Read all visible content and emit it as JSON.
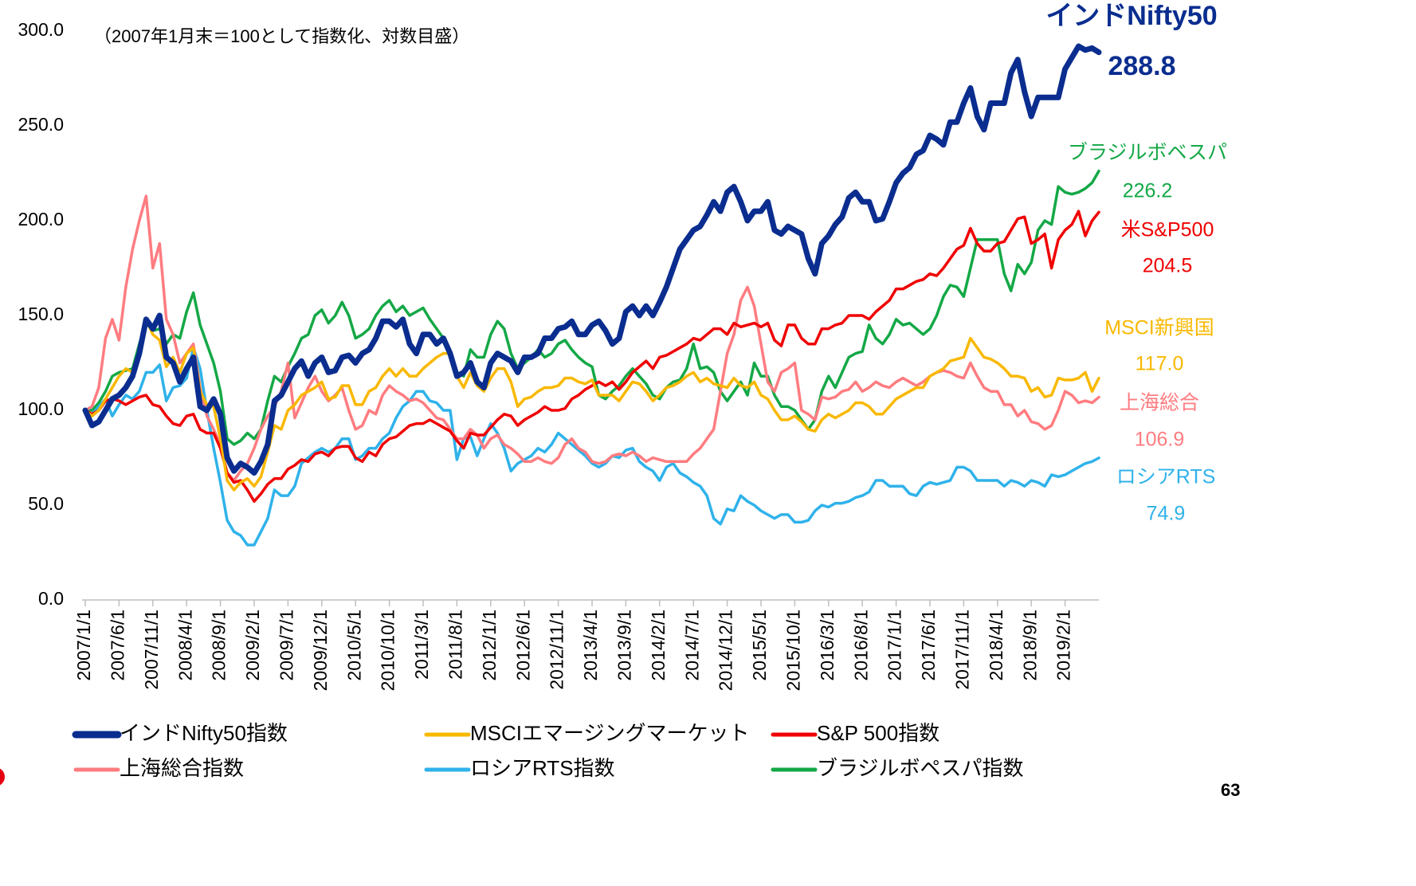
{
  "chart_data": {
    "type": "line",
    "subtitle": "（2007年1月末＝100として指数化、対数目盛）",
    "page_number": "63",
    "ylim": [
      0,
      300
    ],
    "yticks": [
      {
        "value": 0,
        "label": "0.0"
      },
      {
        "value": 50,
        "label": "50.0"
      },
      {
        "value": 100,
        "label": "100.0"
      },
      {
        "value": 150,
        "label": "150.0"
      },
      {
        "value": 200,
        "label": "200.0"
      },
      {
        "value": 250,
        "label": "250.0"
      },
      {
        "value": 300,
        "label": "300.0"
      }
    ],
    "categories": [
      "2007/1/1",
      null,
      null,
      null,
      null,
      "2007/6/1",
      null,
      null,
      null,
      null,
      "2007/11/1",
      null,
      null,
      null,
      null,
      "2008/4/1",
      null,
      null,
      null,
      null,
      "2008/9/1",
      null,
      null,
      null,
      null,
      "2009/2/1",
      null,
      null,
      null,
      null,
      "2009/7/1",
      null,
      null,
      null,
      null,
      "2009/12/1",
      null,
      null,
      null,
      null,
      "2010/5/1",
      null,
      null,
      null,
      null,
      "2010/10/1",
      null,
      null,
      null,
      null,
      "2011/3/1",
      null,
      null,
      null,
      null,
      "2011/8/1",
      null,
      null,
      null,
      null,
      "2012/1/1",
      null,
      null,
      null,
      null,
      "2012/6/1",
      null,
      null,
      null,
      null,
      "2012/11/1",
      null,
      null,
      null,
      null,
      "2013/4/1",
      null,
      null,
      null,
      null,
      "2013/9/1",
      null,
      null,
      null,
      null,
      "2014/2/1",
      null,
      null,
      null,
      null,
      "2014/7/1",
      null,
      null,
      null,
      null,
      "2014/12/1",
      null,
      null,
      null,
      null,
      "2015/5/1",
      null,
      null,
      null,
      null,
      "2015/10/1",
      null,
      null,
      null,
      null,
      "2016/3/1",
      null,
      null,
      null,
      null,
      "2016/8/1",
      null,
      null,
      null,
      null,
      "2017/1/1",
      null,
      null,
      null,
      null,
      "2017/6/1",
      null,
      null,
      null,
      null,
      "2017/11/1",
      null,
      null,
      null,
      null,
      "2018/4/1",
      null,
      null,
      null,
      null,
      "2018/9/1",
      null,
      null,
      null,
      null,
      "2019/2/1",
      null,
      null,
      null,
      null,
      null
    ],
    "series": [
      {
        "name": "インドNifty50指数",
        "color": "#0a2d8f",
        "width": 7,
        "end_label": "インドNifty50",
        "end_value_label": "288.8",
        "values": [
          100,
          92,
          94,
          100,
          106,
          108,
          112,
          118,
          130,
          148,
          143,
          150,
          128,
          125,
          115,
          122,
          128,
          102,
          100,
          106,
          98,
          75,
          68,
          72,
          70,
          67,
          73,
          82,
          105,
          108,
          115,
          122,
          126,
          118,
          125,
          128,
          120,
          121,
          128,
          129,
          125,
          130,
          132,
          138,
          147,
          147,
          144,
          148,
          135,
          130,
          140,
          140,
          135,
          138,
          130,
          118,
          120,
          125,
          115,
          112,
          125,
          130,
          128,
          126,
          120,
          128,
          128,
          130,
          138,
          138,
          143,
          144,
          147,
          140,
          140,
          145,
          147,
          142,
          135,
          138,
          152,
          155,
          150,
          155,
          150,
          157,
          165,
          175,
          185,
          190,
          195,
          197,
          203,
          210,
          205,
          215,
          218,
          210,
          200,
          205,
          205,
          210,
          195,
          193,
          197,
          195,
          193,
          180,
          172,
          188,
          192,
          198,
          202,
          212,
          215,
          210,
          210,
          200,
          201,
          210,
          220,
          225,
          228,
          235,
          237,
          245,
          243,
          240,
          252,
          252,
          262,
          270,
          255,
          248,
          262,
          262,
          262,
          278,
          285,
          268,
          255,
          265,
          265,
          265,
          265,
          280,
          286,
          292,
          290,
          291,
          288.8
        ]
      },
      {
        "name": "MSCIエマージングマーケット",
        "color": "#f9b800",
        "width": 3.5,
        "end_label": "MSCI新興国",
        "end_value_label": "117.0",
        "values": [
          100,
          97,
          100,
          106,
          112,
          118,
          122,
          120,
          130,
          148,
          140,
          137,
          123,
          128,
          120,
          130,
          133,
          110,
          103,
          102,
          85,
          63,
          58,
          62,
          64,
          60,
          65,
          78,
          92,
          90,
          100,
          103,
          108,
          110,
          112,
          115,
          106,
          107,
          113,
          113,
          103,
          103,
          110,
          112,
          118,
          122,
          118,
          122,
          118,
          118,
          122,
          125,
          128,
          130,
          130,
          118,
          112,
          120,
          113,
          110,
          117,
          122,
          122,
          115,
          102,
          106,
          107,
          110,
          112,
          112,
          113,
          117,
          117,
          115,
          114,
          116,
          108,
          108,
          108,
          105,
          110,
          115,
          114,
          110,
          105,
          108,
          112,
          113,
          115,
          118,
          120,
          115,
          117,
          114,
          113,
          112,
          117,
          113,
          112,
          115,
          108,
          106,
          100,
          95,
          95,
          97,
          94,
          90,
          89,
          95,
          98,
          96,
          98,
          100,
          104,
          104,
          102,
          98,
          98,
          102,
          106,
          108,
          110,
          112,
          112,
          118,
          120,
          122,
          126,
          127,
          128,
          138,
          133,
          128,
          127,
          125,
          122,
          118,
          118,
          117,
          110,
          112,
          107,
          108,
          117,
          116,
          116,
          117,
          120,
          110,
          117.0
        ]
      },
      {
        "name": "S&P 500指数",
        "color": "#f00000",
        "width": 3.5,
        "end_label": "米S&P500",
        "end_value_label": "204.5",
        "values": [
          100,
          98,
          100,
          105,
          106,
          105,
          103,
          105,
          107,
          108,
          103,
          102,
          97,
          93,
          92,
          97,
          98,
          90,
          88,
          88,
          80,
          67,
          62,
          63,
          58,
          52,
          56,
          61,
          64,
          64,
          69,
          71,
          74,
          73,
          77,
          78,
          76,
          80,
          81,
          81,
          75,
          73,
          78,
          76,
          82,
          85,
          86,
          89,
          92,
          93,
          93,
          95,
          93,
          91,
          89,
          84,
          80,
          88,
          87,
          87,
          91,
          95,
          98,
          97,
          92,
          95,
          97,
          99,
          102,
          100,
          100,
          101,
          106,
          108,
          111,
          113,
          115,
          113,
          115,
          111,
          115,
          120,
          123,
          126,
          122,
          128,
          129,
          131,
          133,
          135,
          138,
          137,
          140,
          143,
          143,
          140,
          146,
          144,
          145,
          146,
          144,
          146,
          137,
          134,
          145,
          145,
          138,
          135,
          135,
          143,
          143,
          145,
          146,
          150,
          150,
          150,
          148,
          152,
          155,
          158,
          164,
          164,
          166,
          168,
          169,
          172,
          171,
          175,
          180,
          185,
          187,
          196,
          188,
          184,
          184,
          188,
          189,
          195,
          201,
          202,
          188,
          190,
          193,
          175,
          190,
          195,
          198,
          205,
          192,
          200,
          204.5
        ]
      },
      {
        "name": "上海総合指数",
        "color": "#ff7c80",
        "width": 3.5,
        "end_label": "上海総合",
        "end_value_label": "106.9",
        "values": [
          100,
          102,
          112,
          138,
          148,
          137,
          165,
          185,
          200,
          213,
          175,
          188,
          148,
          140,
          125,
          130,
          135,
          112,
          97,
          90,
          82,
          67,
          63,
          68,
          72,
          80,
          90,
          97,
          102,
          110,
          125,
          96,
          104,
          112,
          118,
          110,
          105,
          108,
          112,
          100,
          90,
          92,
          100,
          98,
          108,
          113,
          110,
          108,
          105,
          106,
          104,
          100,
          96,
          95,
          90,
          85,
          85,
          90,
          87,
          80,
          85,
          87,
          82,
          80,
          77,
          73,
          73,
          75,
          73,
          72,
          75,
          82,
          85,
          80,
          78,
          73,
          72,
          73,
          76,
          77,
          76,
          78,
          76,
          73,
          75,
          74,
          73,
          73,
          73,
          73,
          77,
          80,
          85,
          90,
          110,
          130,
          140,
          158,
          165,
          155,
          135,
          115,
          110,
          120,
          122,
          125,
          100,
          98,
          95,
          107,
          106,
          107,
          110,
          111,
          115,
          110,
          112,
          115,
          113,
          112,
          115,
          117,
          115,
          113,
          115,
          118,
          120,
          121,
          120,
          118,
          117,
          125,
          118,
          112,
          110,
          110,
          103,
          103,
          97,
          100,
          94,
          93,
          90,
          92,
          100,
          110,
          108,
          104,
          105,
          104,
          106.9
        ]
      },
      {
        "name": "ロシアRTS指数",
        "color": "#2fb2ea",
        "width": 3.5,
        "end_label": "ロシアRTS",
        "end_value_label": "74.9",
        "values": [
          100,
          98,
          102,
          106,
          97,
          103,
          108,
          106,
          110,
          120,
          120,
          124,
          105,
          112,
          113,
          117,
          133,
          122,
          100,
          80,
          62,
          42,
          36,
          34,
          29,
          29,
          36,
          43,
          58,
          55,
          55,
          60,
          72,
          75,
          78,
          80,
          78,
          80,
          85,
          85,
          74,
          76,
          80,
          80,
          85,
          88,
          96,
          102,
          105,
          110,
          110,
          105,
          104,
          100,
          100,
          74,
          85,
          86,
          76,
          85,
          93,
          88,
          80,
          68,
          72,
          74,
          76,
          80,
          78,
          82,
          88,
          85,
          82,
          79,
          76,
          72,
          70,
          72,
          76,
          75,
          79,
          80,
          73,
          70,
          68,
          63,
          70,
          72,
          67,
          65,
          62,
          60,
          55,
          43,
          40,
          48,
          47,
          55,
          52,
          50,
          47,
          45,
          43,
          45,
          45,
          41,
          41,
          42,
          47,
          50,
          49,
          51,
          51,
          52,
          54,
          55,
          57,
          63,
          63,
          60,
          60,
          60,
          56,
          55,
          60,
          62,
          61,
          62,
          63,
          70,
          70,
          68,
          63,
          63,
          63,
          63,
          60,
          63,
          62,
          60,
          63,
          62,
          60,
          66,
          65,
          66,
          68,
          70,
          72,
          73,
          74.9
        ]
      },
      {
        "name": "ブラジルボペスパ指数",
        "color": "#14a846",
        "width": 3.5,
        "end_label": "ブラジルボベスパ",
        "end_value_label": "226.2",
        "values": [
          100,
          100,
          104,
          110,
          118,
          120,
          121,
          122,
          135,
          146,
          142,
          143,
          135,
          140,
          138,
          152,
          162,
          145,
          135,
          125,
          110,
          85,
          82,
          84,
          88,
          85,
          90,
          105,
          118,
          115,
          123,
          130,
          138,
          140,
          150,
          153,
          146,
          150,
          157,
          150,
          138,
          140,
          143,
          150,
          155,
          158,
          152,
          155,
          150,
          152,
          154,
          148,
          143,
          138,
          130,
          120,
          118,
          132,
          128,
          128,
          140,
          147,
          143,
          130,
          122,
          125,
          128,
          132,
          128,
          130,
          135,
          137,
          132,
          128,
          125,
          123,
          108,
          106,
          110,
          113,
          118,
          122,
          118,
          114,
          108,
          106,
          112,
          115,
          116,
          122,
          135,
          122,
          123,
          120,
          110,
          105,
          110,
          115,
          108,
          125,
          118,
          118,
          108,
          102,
          102,
          100,
          95,
          90,
          95,
          110,
          118,
          112,
          120,
          128,
          130,
          131,
          145,
          138,
          135,
          140,
          148,
          145,
          146,
          143,
          140,
          143,
          150,
          160,
          166,
          165,
          160,
          175,
          190,
          190,
          190,
          190,
          172,
          163,
          177,
          172,
          178,
          195,
          200,
          198,
          218,
          215,
          214,
          215,
          217,
          220,
          226.2
        ]
      }
    ]
  }
}
